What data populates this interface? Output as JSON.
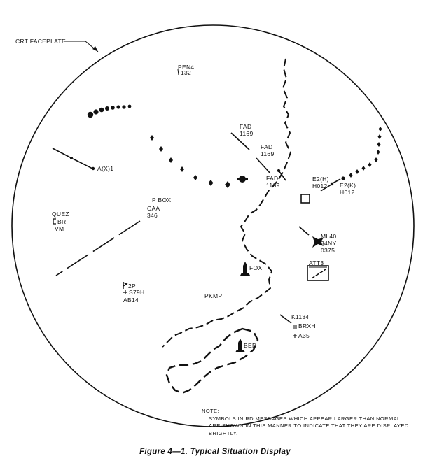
{
  "faceplate_label": "CRT FACEPLATE",
  "labels": {
    "pen4_name": "PEN4",
    "pen4_alt": "132",
    "fad_1_name": "FAD",
    "fad_1_alt": "1169",
    "fad_2_name": "FAD",
    "fad_2_alt": "1169",
    "fad_3_name": "FAD",
    "fad_3_alt": "1169",
    "ax1": "A(X)1",
    "e2h_name": "E2(H)",
    "e2h_code": "H012",
    "e2k_name": "E2(K)",
    "e2k_code": "H012",
    "pbox": "P BOX",
    "caa_name": "CAA",
    "caa_alt": "346",
    "quez_name": "QUEZ",
    "quez_code": "BR",
    "quez_vm": "VM",
    "ml40_name": "ML40",
    "ml40_code": "34NY",
    "ml40_alt": "0375",
    "fox": "FOX",
    "att3": "ATT3",
    "p2_name": "2P",
    "p2_code": "S79H",
    "p2_alt": "AB14",
    "pkmp": "PKMP",
    "k1134_name": "K1134",
    "k1134_code": "BRXH",
    "k1134_alt": "A35",
    "bed": "BED"
  },
  "note": {
    "title": "NOTE:",
    "body": "SYMBOLS IN RD MESSAGES WHICH APPEAR LARGER THAN NORMAL ARE SHOWN IN THIS MANNER TO INDICATE THAT THEY ARE DISPLAYED BRIGHTLY."
  },
  "caption": "Figure 4—1. Typical Situation Display"
}
